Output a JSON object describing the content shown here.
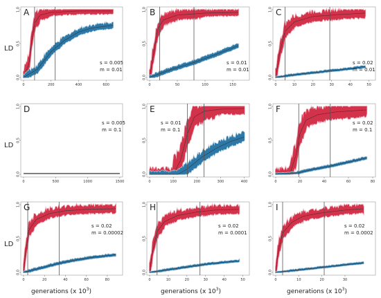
{
  "figure": {
    "y_axis_label": "LD",
    "x_axis_label": "generations (x 10",
    "x_axis_label_exponent": "3",
    "x_axis_label_close": ")"
  },
  "colors": {
    "red_band": "#d2334b",
    "red_band_glow": "#f2a9b8",
    "blue_band": "#2d78a6",
    "blue_band_glow": "#b6d3e4",
    "mean_line": "#222222",
    "vline": "#555555",
    "frame": "#9a9a9a",
    "zero_line": "#333333"
  },
  "chart_data": [
    {
      "id": "A",
      "type": "area",
      "letter": "A",
      "xlim": [
        0,
        700
      ],
      "ylim": [
        0,
        1
      ],
      "xticks": [
        "0",
        "200",
        "400",
        "600"
      ],
      "yticks": [
        "0.0",
        "0.5",
        "1.0"
      ],
      "annotation": [
        "s = 0.005",
        "m = 0.01"
      ],
      "vlines": [
        80,
        230
      ],
      "series": [
        {
          "color": "red",
          "x_end": 650,
          "points": [
            [
              0,
              0
            ],
            [
              40,
              0.2
            ],
            [
              60,
              0.55
            ],
            [
              80,
              0.8
            ],
            [
              120,
              0.92
            ],
            [
              200,
              0.96
            ],
            [
              400,
              0.98
            ],
            [
              650,
              0.98
            ]
          ],
          "spread": 0.2
        },
        {
          "color": "blue",
          "x_end": 650,
          "points": [
            [
              0,
              0
            ],
            [
              100,
              0.12
            ],
            [
              200,
              0.38
            ],
            [
              300,
              0.55
            ],
            [
              400,
              0.67
            ],
            [
              500,
              0.73
            ],
            [
              650,
              0.77
            ]
          ],
          "spread": 0.12
        }
      ]
    },
    {
      "id": "B",
      "type": "area",
      "letter": "B",
      "xlim": [
        0,
        175
      ],
      "ylim": [
        0,
        1
      ],
      "xticks": [
        "0",
        "50",
        "100",
        "150"
      ],
      "yticks": [
        "0.0",
        "0.5",
        "1.0"
      ],
      "annotation": [
        "s = 0.01",
        "m = 0.01"
      ],
      "vlines": [
        18,
        80
      ],
      "series": [
        {
          "color": "red",
          "x_end": 160,
          "points": [
            [
              0,
              0
            ],
            [
              8,
              0.4
            ],
            [
              15,
              0.72
            ],
            [
              25,
              0.85
            ],
            [
              50,
              0.92
            ],
            [
              100,
              0.95
            ],
            [
              160,
              0.96
            ]
          ],
          "spread": 0.2
        },
        {
          "color": "blue",
          "x_end": 160,
          "points": [
            [
              0,
              0
            ],
            [
              40,
              0.12
            ],
            [
              80,
              0.22
            ],
            [
              120,
              0.34
            ],
            [
              160,
              0.47
            ]
          ],
          "spread": 0.08
        }
      ]
    },
    {
      "id": "C",
      "type": "area",
      "letter": "C",
      "xlim": [
        0,
        52
      ],
      "ylim": [
        0,
        1
      ],
      "xticks": [
        "0",
        "10",
        "20",
        "30",
        "40",
        "50"
      ],
      "yticks": [
        "0.0",
        "0.5",
        "1.0"
      ],
      "annotation": [
        "s = 0.02",
        "m = 0.01"
      ],
      "vlines": [
        5,
        29
      ],
      "series": [
        {
          "color": "red",
          "x_end": 48,
          "points": [
            [
              0,
              0
            ],
            [
              2,
              0.35
            ],
            [
              5,
              0.68
            ],
            [
              10,
              0.82
            ],
            [
              20,
              0.9
            ],
            [
              35,
              0.93
            ],
            [
              48,
              0.95
            ]
          ],
          "spread": 0.2
        },
        {
          "color": "blue",
          "x_end": 48,
          "points": [
            [
              0,
              0
            ],
            [
              10,
              0.04
            ],
            [
              20,
              0.07
            ],
            [
              30,
              0.1
            ],
            [
              40,
              0.13
            ],
            [
              48,
              0.16
            ]
          ],
          "spread": 0.04
        }
      ]
    },
    {
      "id": "D",
      "type": "line",
      "letter": "D",
      "xlim": [
        0,
        1500
      ],
      "ylim": [
        0,
        1
      ],
      "xticks": [
        "0",
        "500",
        "1000",
        "1500"
      ],
      "yticks": [
        "0.0",
        "0.5",
        "1.0"
      ],
      "annotation": [
        "s = 0.005",
        "m = 0.1"
      ],
      "vlines": [],
      "series": [
        {
          "color": "zero",
          "x_end": 1500,
          "points": [
            [
              0,
              0.01
            ],
            [
              1500,
              0.01
            ]
          ],
          "spread": 0
        }
      ]
    },
    {
      "id": "E",
      "type": "area",
      "letter": "E",
      "xlim": [
        0,
        410
      ],
      "ylim": [
        0,
        1
      ],
      "xticks": [
        "0",
        "100",
        "200",
        "300",
        "400"
      ],
      "yticks": [
        "0.0",
        "0.5",
        "1.0"
      ],
      "annotation": [
        "s = 0.01",
        "m = 0.1"
      ],
      "vlines": [
        160,
        230
      ],
      "series": [
        {
          "color": "red",
          "x_end": 400,
          "points": [
            [
              0,
              0
            ],
            [
              100,
              0
            ],
            [
              130,
              0.2
            ],
            [
              160,
              0.6
            ],
            [
              190,
              0.85
            ],
            [
              230,
              0.93
            ],
            [
              300,
              0.96
            ],
            [
              400,
              0.97
            ]
          ],
          "spread": 0.35
        },
        {
          "color": "blue",
          "x_end": 400,
          "points": [
            [
              0,
              0
            ],
            [
              120,
              0
            ],
            [
              160,
              0.08
            ],
            [
              220,
              0.25
            ],
            [
              280,
              0.38
            ],
            [
              340,
              0.48
            ],
            [
              400,
              0.55
            ]
          ],
          "spread": 0.18
        }
      ]
    },
    {
      "id": "F",
      "type": "area",
      "letter": "F",
      "xlim": [
        0,
        80
      ],
      "ylim": [
        0,
        1
      ],
      "xticks": [
        "0",
        "20",
        "40",
        "60",
        "80"
      ],
      "yticks": [
        "0.0",
        "0.5",
        "1.0"
      ],
      "annotation": [
        "s = 0.02",
        "m = 0.1"
      ],
      "vlines": [
        19,
        45
      ],
      "series": [
        {
          "color": "red",
          "x_end": 75,
          "points": [
            [
              0,
              0
            ],
            [
              12,
              0.02
            ],
            [
              17,
              0.3
            ],
            [
              20,
              0.6
            ],
            [
              25,
              0.8
            ],
            [
              35,
              0.88
            ],
            [
              50,
              0.92
            ],
            [
              75,
              0.95
            ]
          ],
          "spread": 0.3
        },
        {
          "color": "blue",
          "x_end": 75,
          "points": [
            [
              0,
              0
            ],
            [
              18,
              0.02
            ],
            [
              30,
              0.07
            ],
            [
              45,
              0.12
            ],
            [
              60,
              0.18
            ],
            [
              75,
              0.24
            ]
          ],
          "spread": 0.05
        }
      ]
    },
    {
      "id": "G",
      "type": "area",
      "letter": "G",
      "xlim": [
        0,
        92
      ],
      "ylim": [
        0,
        1
      ],
      "xticks": [
        "0",
        "20",
        "40",
        "60",
        "80"
      ],
      "yticks": [
        "0.0",
        "0.5",
        "1.0"
      ],
      "annotation": [
        "s = 0.02",
        "m = 0.00002"
      ],
      "vlines": [
        4,
        34
      ],
      "series": [
        {
          "color": "red",
          "x_end": 88,
          "points": [
            [
              0,
              0
            ],
            [
              2,
              0.3
            ],
            [
              5,
              0.62
            ],
            [
              12,
              0.78
            ],
            [
              25,
              0.87
            ],
            [
              40,
              0.91
            ],
            [
              60,
              0.93
            ],
            [
              88,
              0.94
            ]
          ],
          "spread": 0.18
        },
        {
          "color": "blue",
          "x_end": 88,
          "points": [
            [
              0,
              0
            ],
            [
              15,
              0.06
            ],
            [
              30,
              0.12
            ],
            [
              45,
              0.17
            ],
            [
              60,
              0.21
            ],
            [
              75,
              0.24
            ],
            [
              88,
              0.26
            ]
          ],
          "spread": 0.05
        }
      ]
    },
    {
      "id": "H",
      "type": "area",
      "letter": "H",
      "xlim": [
        0,
        52
      ],
      "ylim": [
        0,
        1
      ],
      "xticks": [
        "0",
        "10",
        "20",
        "30",
        "40",
        "50"
      ],
      "yticks": [
        "0.0",
        "0.5",
        "1.0"
      ],
      "annotation": [
        "s = 0.02",
        "m = 0.0001"
      ],
      "vlines": [
        4,
        27
      ],
      "series": [
        {
          "color": "red",
          "x_end": 48,
          "points": [
            [
              0,
              0
            ],
            [
              1.5,
              0.3
            ],
            [
              4,
              0.6
            ],
            [
              8,
              0.75
            ],
            [
              15,
              0.84
            ],
            [
              25,
              0.89
            ],
            [
              35,
              0.92
            ],
            [
              48,
              0.93
            ]
          ],
          "spread": 0.18
        },
        {
          "color": "blue",
          "x_end": 48,
          "points": [
            [
              0,
              0
            ],
            [
              10,
              0.04
            ],
            [
              20,
              0.08
            ],
            [
              30,
              0.12
            ],
            [
              40,
              0.15
            ],
            [
              48,
              0.17
            ]
          ],
          "spread": 0.04
        }
      ]
    },
    {
      "id": "I",
      "type": "area",
      "letter": "I",
      "xlim": [
        0,
        42
      ],
      "ylim": [
        0,
        1
      ],
      "xticks": [
        "0",
        "10",
        "20",
        "30"
      ],
      "yticks": [
        "0.0",
        "0.5",
        "1.0"
      ],
      "annotation": [
        "s = 0.02",
        "m = 0.0002"
      ],
      "vlines": [
        3,
        21
      ],
      "series": [
        {
          "color": "red",
          "x_end": 38,
          "points": [
            [
              0,
              0
            ],
            [
              1,
              0.3
            ],
            [
              3,
              0.58
            ],
            [
              7,
              0.74
            ],
            [
              12,
              0.83
            ],
            [
              20,
              0.88
            ],
            [
              30,
              0.92
            ],
            [
              38,
              0.94
            ]
          ],
          "spread": 0.18
        },
        {
          "color": "blue",
          "x_end": 38,
          "points": [
            [
              0,
              0
            ],
            [
              8,
              0.03
            ],
            [
              16,
              0.06
            ],
            [
              24,
              0.09
            ],
            [
              32,
              0.12
            ],
            [
              38,
              0.14
            ]
          ],
          "spread": 0.035
        }
      ]
    }
  ]
}
